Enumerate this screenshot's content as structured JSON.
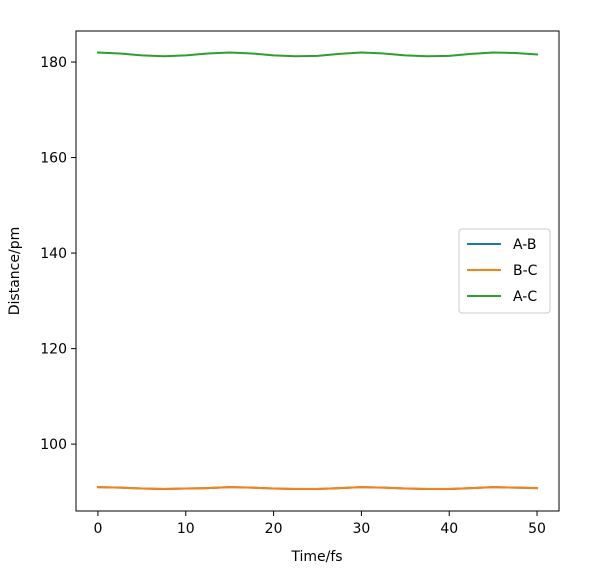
{
  "chart_data": {
    "type": "line",
    "title": "",
    "xlabel": "Time/fs",
    "ylabel": "Distance/pm",
    "xlim": [
      -2.5,
      52.5
    ],
    "ylim": [
      86.0,
      186.5
    ],
    "xticks": [
      0,
      10,
      20,
      30,
      40,
      50
    ],
    "yticks": [
      100,
      120,
      140,
      160,
      180
    ],
    "grid": false,
    "legend_position": "center-right",
    "x": [
      0,
      2.5,
      5,
      7.5,
      10,
      12.5,
      15,
      17.5,
      20,
      22.5,
      25,
      27.5,
      30,
      32.5,
      35,
      37.5,
      40,
      42.5,
      45,
      47.5,
      50
    ],
    "series": [
      {
        "name": "A-B",
        "color": "#1f77b4",
        "values": [
          91.0,
          90.9,
          90.7,
          90.6,
          90.7,
          90.8,
          91.0,
          90.9,
          90.7,
          90.6,
          90.6,
          90.8,
          91.0,
          90.9,
          90.7,
          90.6,
          90.6,
          90.8,
          91.0,
          90.9,
          90.8
        ]
      },
      {
        "name": "B-C",
        "color": "#ff7f0e",
        "values": [
          91.0,
          90.9,
          90.7,
          90.6,
          90.7,
          90.8,
          91.0,
          90.9,
          90.7,
          90.6,
          90.6,
          90.8,
          91.0,
          90.9,
          90.7,
          90.6,
          90.6,
          90.8,
          91.0,
          90.9,
          90.8
        ]
      },
      {
        "name": "A-C",
        "color": "#2ca02c",
        "values": [
          182.0,
          181.8,
          181.4,
          181.2,
          181.4,
          181.8,
          182.0,
          181.8,
          181.4,
          181.2,
          181.3,
          181.7,
          182.0,
          181.8,
          181.4,
          181.2,
          181.3,
          181.7,
          182.0,
          181.9,
          181.6
        ]
      }
    ]
  }
}
